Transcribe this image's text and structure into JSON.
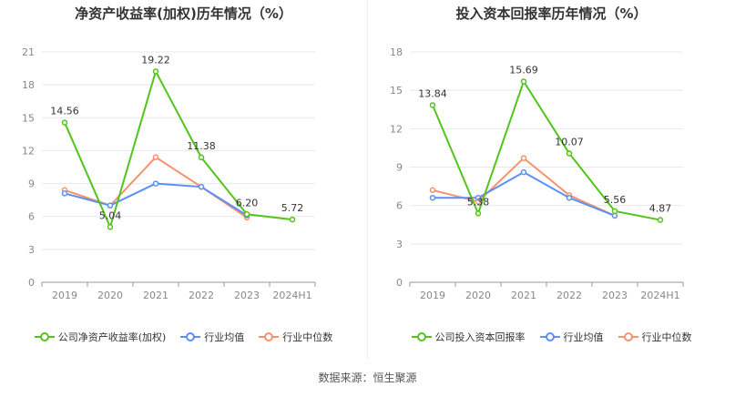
{
  "colors": {
    "company": "#52c41a",
    "industry_avg": "#5b8ff9",
    "industry_median": "#f6926b"
  },
  "icons": {
    "legend_marker": "line-with-circle-icon"
  },
  "source": "数据来源：恒生聚源",
  "chart_data": [
    {
      "type": "line",
      "title": "净资产收益率(加权)历年情况（%）",
      "categories": [
        "2019",
        "2020",
        "2021",
        "2022",
        "2023",
        "2024H1"
      ],
      "ylim": [
        0,
        21
      ],
      "yticks": [
        "0",
        "3",
        "6",
        "9",
        "12",
        "15",
        "18",
        "21"
      ],
      "grid": true,
      "legend_position": "bottom",
      "series": [
        {
          "name": "公司净资产收益率(加权)",
          "values": [
            14.56,
            5.04,
            19.22,
            11.38,
            6.2,
            5.72
          ],
          "labels": [
            "14.56",
            "5.04",
            "19.22",
            "11.38",
            "6.20",
            "5.72"
          ]
        },
        {
          "name": "行业均值",
          "values": [
            8.1,
            7.0,
            9.0,
            8.7,
            6.1,
            null
          ]
        },
        {
          "name": "行业中位数",
          "values": [
            8.4,
            7.0,
            11.4,
            8.7,
            5.9,
            null
          ]
        }
      ]
    },
    {
      "type": "line",
      "title": "投入资本回报率历年情况（%）",
      "categories": [
        "2019",
        "2020",
        "2021",
        "2022",
        "2023",
        "2024H1"
      ],
      "ylim": [
        0,
        18
      ],
      "yticks": [
        "0",
        "3",
        "6",
        "9",
        "12",
        "15",
        "18"
      ],
      "grid": true,
      "legend_position": "bottom",
      "series": [
        {
          "name": "公司投入资本回报率",
          "values": [
            13.84,
            5.38,
            15.69,
            10.07,
            5.56,
            4.87
          ],
          "labels": [
            "13.84",
            "5.38",
            "15.69",
            "10.07",
            "5.56",
            "4.87"
          ]
        },
        {
          "name": "行业均值",
          "values": [
            6.6,
            6.6,
            8.6,
            6.6,
            5.2,
            null
          ]
        },
        {
          "name": "行业中位数",
          "values": [
            7.2,
            6.3,
            9.7,
            6.8,
            5.2,
            null
          ]
        }
      ]
    }
  ]
}
